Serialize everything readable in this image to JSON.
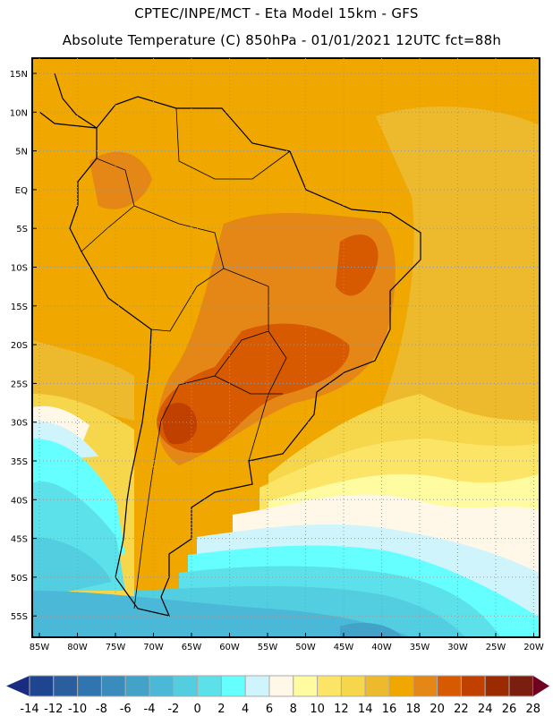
{
  "header": {
    "line1": "CPTEC/INPE/MCT -  Eta Model 15km - GFS",
    "line2": "Absolute Temperature (C) 850hPa - 01/01/2021 12UTC fct=88h"
  },
  "axes": {
    "lat_labels": [
      "15N",
      "10N",
      "5N",
      "EQ",
      "5S",
      "10S",
      "15S",
      "20S",
      "25S",
      "30S",
      "35S",
      "40S",
      "45S",
      "50S",
      "55S"
    ],
    "lon_labels": [
      "85W",
      "80W",
      "75W",
      "70W",
      "65W",
      "60W",
      "55W",
      "50W",
      "45W",
      "40W",
      "35W",
      "30W",
      "25W",
      "20W"
    ]
  },
  "colorbar": {
    "labels": [
      "-14",
      "-12",
      "-10",
      "-8",
      "-6",
      "-4",
      "-2",
      "0",
      "2",
      "4",
      "6",
      "8",
      "10",
      "12",
      "14",
      "16",
      "18",
      "20",
      "22",
      "24",
      "26",
      "28"
    ],
    "colors": [
      "#1F4590",
      "#2A5E9E",
      "#3075B0",
      "#3A8CBC",
      "#42A2C8",
      "#4AB8D6",
      "#52CEE0",
      "#5CE0EA",
      "#66FFFF",
      "#D0F4FC",
      "#FFF8E8",
      "#FFFBA0",
      "#FCE566",
      "#F6D64A",
      "#EDBA2E",
      "#F0A800",
      "#E48716",
      "#D85A00",
      "#C04000",
      "#9C2A00",
      "#7A1E10"
    ],
    "under_color": "#1A2C80",
    "over_color": "#6E0020"
  }
}
